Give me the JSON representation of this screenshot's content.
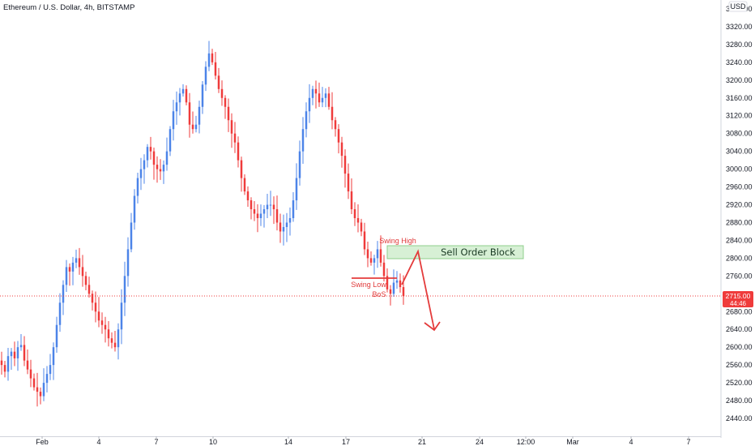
{
  "header": {
    "symbol_title": "Ethereum / U.S. Dollar, 4h, BITSTAMP"
  },
  "price_axis": {
    "currency": "USD",
    "last_price": "2715.00",
    "countdown": "44:46"
  },
  "annotations": {
    "swing_high": "Swing High",
    "swing_low": "Swing Low",
    "bos": "BoS",
    "order_block": "Sell Order Block"
  },
  "colors": {
    "up": "#4c84e8",
    "down": "#ef3b3b",
    "order_block_fill": "#d7f0d5",
    "order_block_border": "#8fcf8c",
    "arrow": "#e43b3b",
    "axis_text": "#131722",
    "price_line": "#ef3b3b"
  },
  "chart_data": {
    "type": "candlestick",
    "title": "Ethereum / U.S. Dollar, 4h, BITSTAMP",
    "xlabel": "",
    "ylabel": "",
    "ylim": [
      2400,
      3360
    ],
    "y_ticks": [
      3360,
      3320,
      3280,
      3240,
      3200,
      3160,
      3120,
      3080,
      3040,
      3000,
      2960,
      2920,
      2880,
      2840,
      2800,
      2760,
      2720,
      2680,
      2640,
      2600,
      2560,
      2520,
      2480,
      2440
    ],
    "x_ticks": [
      "Feb",
      "4",
      "7",
      "10",
      "14",
      "17",
      "21",
      "24",
      "12:00",
      "Mar",
      "4",
      "7"
    ],
    "grid": false,
    "legend": "none",
    "price_path_closes": [
      2560,
      2545,
      2580,
      2590,
      2575,
      2600,
      2605,
      2570,
      2550,
      2530,
      2510,
      2500,
      2490,
      2520,
      2540,
      2560,
      2600,
      2650,
      2700,
      2740,
      2780,
      2770,
      2790,
      2800,
      2780,
      2760,
      2740,
      2720,
      2700,
      2680,
      2660,
      2650,
      2640,
      2620,
      2610,
      2600,
      2640,
      2700,
      2760,
      2820,
      2880,
      2940,
      2980,
      3000,
      3020,
      3050,
      3040,
      3010,
      3000,
      2995,
      3010,
      3040,
      3090,
      3130,
      3150,
      3170,
      3180,
      3150,
      3100,
      3090,
      3100,
      3140,
      3190,
      3230,
      3260,
      3240,
      3210,
      3180,
      3160,
      3140,
      3110,
      3080,
      3060,
      3020,
      2980,
      2950,
      2930,
      2910,
      2900,
      2890,
      2900,
      2910,
      2920,
      2920,
      2910,
      2880,
      2860,
      2870,
      2880,
      2890,
      2930,
      2980,
      3040,
      3090,
      3130,
      3160,
      3180,
      3170,
      3150,
      3160,
      3170,
      3140,
      3110,
      3090,
      3060,
      3030,
      2990,
      2950,
      2910,
      2890,
      2880,
      2860,
      2820,
      2800,
      2790,
      2800,
      2820,
      2790,
      2760,
      2730,
      2720,
      2745,
      2750,
      2735,
      2715
    ]
  }
}
